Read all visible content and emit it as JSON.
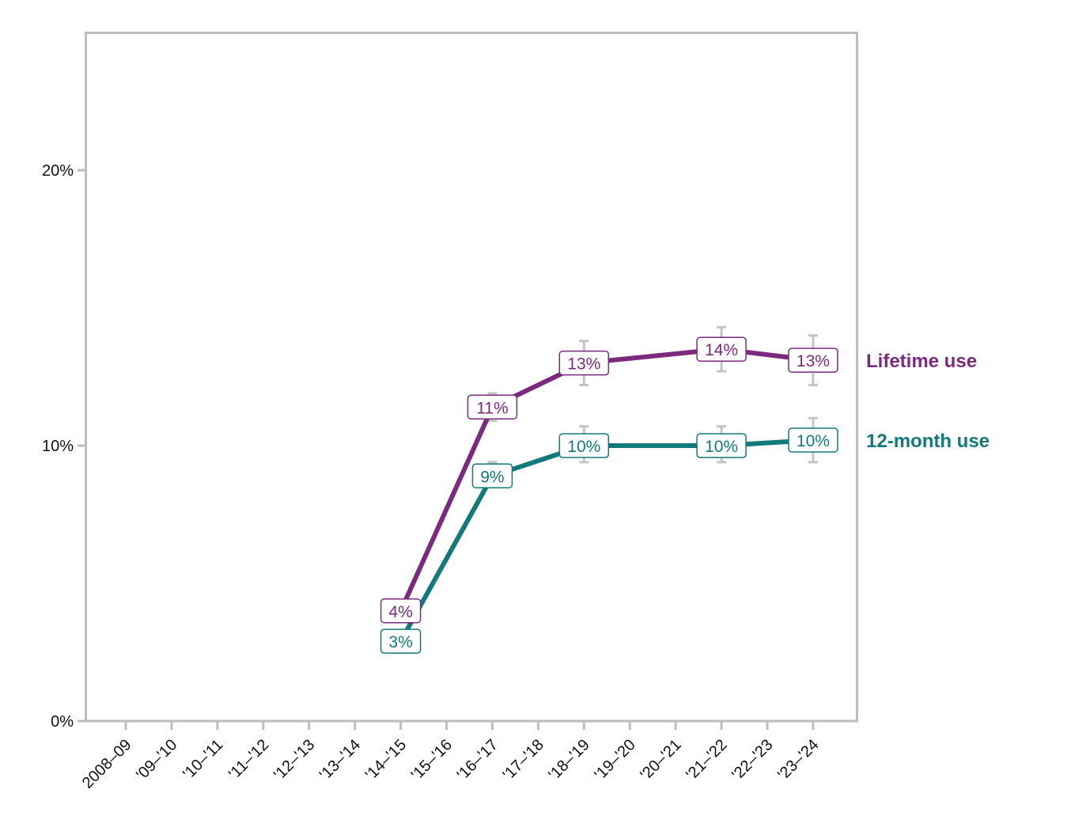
{
  "chart_data": {
    "type": "line",
    "title": "",
    "xlabel": "",
    "ylabel": "",
    "ylim": [
      0,
      25
    ],
    "yticks": [
      0,
      10,
      20
    ],
    "ytick_labels": [
      "0%",
      "10%",
      "20%"
    ],
    "grid": false,
    "legend_position": "direct labels at right of lines",
    "categories": [
      "2008–09",
      "'09–'10",
      "'10–'11",
      "'11–'12",
      "'12–'13",
      "'13–'14",
      "'14–'15",
      "'15–'16",
      "'16–'17",
      "'17–'18",
      "'18–'19",
      "'19–'20",
      "'20–'21",
      "'21–'22",
      "'22–'23",
      "'23–'24"
    ],
    "series": [
      {
        "name": "Lifetime use",
        "color": "#7b2a7e",
        "values": [
          null,
          null,
          null,
          null,
          null,
          null,
          4.0,
          null,
          11.4,
          null,
          13.0,
          null,
          null,
          13.5,
          null,
          13.1
        ],
        "labels": [
          null,
          null,
          null,
          null,
          null,
          null,
          "4%",
          null,
          "11%",
          null,
          "13%",
          null,
          null,
          "14%",
          null,
          "13%"
        ],
        "error_bars": [
          null,
          null,
          null,
          null,
          null,
          null,
          [
            3.6,
            4.4
          ],
          null,
          [
            10.9,
            11.9
          ],
          null,
          [
            12.2,
            13.8
          ],
          null,
          null,
          [
            12.7,
            14.3
          ],
          null,
          [
            12.2,
            14.0
          ]
        ]
      },
      {
        "name": "12-month use",
        "color": "#127a7a",
        "values": [
          null,
          null,
          null,
          null,
          null,
          null,
          2.9,
          null,
          8.9,
          null,
          10.0,
          null,
          null,
          10.0,
          null,
          10.2
        ],
        "labels": [
          null,
          null,
          null,
          null,
          null,
          null,
          "3%",
          null,
          "9%",
          null,
          "10%",
          null,
          null,
          "10%",
          null,
          "10%"
        ],
        "error_bars": [
          null,
          null,
          null,
          null,
          null,
          null,
          [
            2.6,
            3.2
          ],
          null,
          [
            8.6,
            9.4
          ],
          null,
          [
            9.4,
            10.7
          ],
          null,
          null,
          [
            9.4,
            10.7
          ],
          null,
          [
            9.4,
            11.0
          ]
        ]
      }
    ]
  },
  "colors": {
    "axis": "#bdbdbd",
    "error_bar": "#c4c4c4",
    "lifetime": "#7b2a7e",
    "twelve_month": "#127a7a"
  }
}
